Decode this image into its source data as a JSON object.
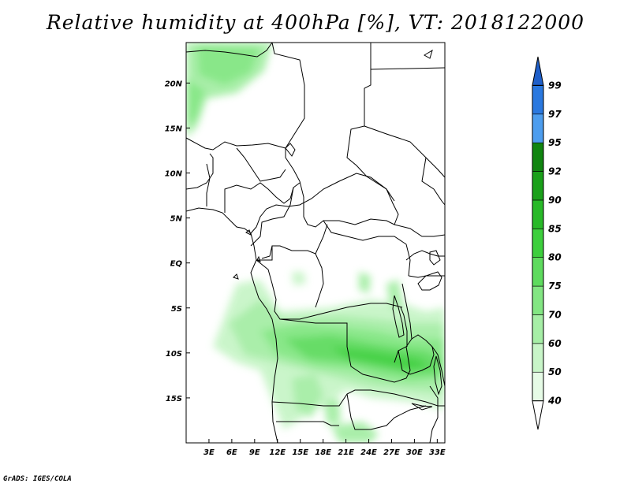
{
  "title": "Relative humidity at 400hPa [%], VT: 2018122000",
  "footer": "GrADS: IGES/COLA",
  "map": {
    "lon_range": [
      0,
      34
    ],
    "lat_range": [
      -20,
      24.5
    ],
    "lat_ticks": [
      {
        "value": 20,
        "label": "20N"
      },
      {
        "value": 15,
        "label": "15N"
      },
      {
        "value": 10,
        "label": "10N"
      },
      {
        "value": 5,
        "label": "5N"
      },
      {
        "value": 0,
        "label": "EQ"
      },
      {
        "value": -5,
        "label": "5S"
      },
      {
        "value": -10,
        "label": "10S"
      },
      {
        "value": -15,
        "label": "15S"
      }
    ],
    "lon_ticks": [
      {
        "value": 3,
        "label": "3E"
      },
      {
        "value": 6,
        "label": "6E"
      },
      {
        "value": 9,
        "label": "9E"
      },
      {
        "value": 12,
        "label": "12E"
      },
      {
        "value": 15,
        "label": "15E"
      },
      {
        "value": 18,
        "label": "18E"
      },
      {
        "value": 21,
        "label": "21E"
      },
      {
        "value": 24,
        "label": "24E"
      },
      {
        "value": 27,
        "label": "27E"
      },
      {
        "value": 30,
        "label": "30E"
      },
      {
        "value": 33,
        "label": "33E"
      }
    ]
  },
  "colorbar": {
    "levels": [
      "40",
      "50",
      "60",
      "70",
      "75",
      "80",
      "85",
      "90",
      "92",
      "95",
      "97",
      "99"
    ],
    "colors": [
      "#ffffff",
      "#e6fbe6",
      "#c8f5c8",
      "#a6eea6",
      "#83e683",
      "#5edb5e",
      "#3dcf3d",
      "#28b928",
      "#1aa01a",
      "#108510",
      "#4d9dee",
      "#2a78df",
      "#1f5fc9"
    ]
  }
}
